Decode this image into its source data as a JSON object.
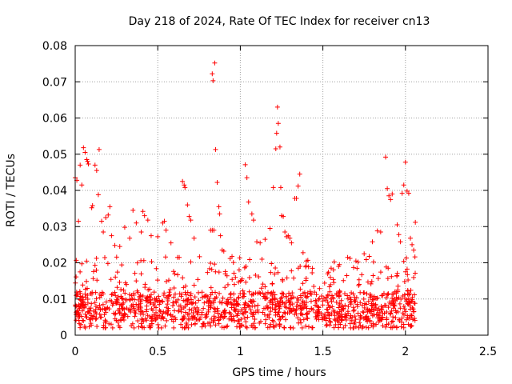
{
  "chart_data": {
    "type": "scatter",
    "title": "Day 218 of 2024, Rate Of TEC Index for receiver cn13",
    "xlabel": "GPS time / hours",
    "ylabel": "ROTI / TECUs",
    "xlim": [
      0,
      2.5
    ],
    "ylim": [
      0,
      0.08
    ],
    "x_ticks": [
      0,
      0.5,
      1,
      1.5,
      2,
      2.5
    ],
    "x_tick_labels": [
      "0",
      "0.5",
      "1",
      "1.5",
      "2",
      "2.5"
    ],
    "y_ticks": [
      0,
      0.01,
      0.02,
      0.03,
      0.04,
      0.05,
      0.06,
      0.07,
      0.08
    ],
    "y_tick_labels": [
      "0",
      "0.01",
      "0.02",
      "0.03",
      "0.04",
      "0.05",
      "0.06",
      "0.07",
      "0.08"
    ],
    "grid": true,
    "marker": "+",
    "color": "#ff0000",
    "series": [
      {
        "name": "cn13",
        "points": [
          [
            0.0,
            0.0435
          ],
          [
            0.01,
            0.0428
          ],
          [
            0.02,
            0.0315
          ],
          [
            0.03,
            0.047
          ],
          [
            0.04,
            0.0415
          ],
          [
            0.05,
            0.0518
          ],
          [
            0.06,
            0.0505
          ],
          [
            0.07,
            0.0485
          ],
          [
            0.075,
            0.048
          ],
          [
            0.08,
            0.0473
          ],
          [
            0.1,
            0.0352
          ],
          [
            0.105,
            0.0358
          ],
          [
            0.12,
            0.047
          ],
          [
            0.13,
            0.0455
          ],
          [
            0.14,
            0.0388
          ],
          [
            0.145,
            0.0513
          ],
          [
            0.16,
            0.0315
          ],
          [
            0.17,
            0.0285
          ],
          [
            0.185,
            0.0325
          ],
          [
            0.2,
            0.0332
          ],
          [
            0.21,
            0.0355
          ],
          [
            0.22,
            0.0275
          ],
          [
            0.24,
            0.0248
          ],
          [
            0.27,
            0.0245
          ],
          [
            0.3,
            0.0298
          ],
          [
            0.33,
            0.0268
          ],
          [
            0.35,
            0.0345
          ],
          [
            0.37,
            0.031
          ],
          [
            0.4,
            0.0285
          ],
          [
            0.41,
            0.0342
          ],
          [
            0.42,
            0.033
          ],
          [
            0.44,
            0.0318
          ],
          [
            0.46,
            0.0275
          ],
          [
            0.5,
            0.0272
          ],
          [
            0.53,
            0.031
          ],
          [
            0.54,
            0.0315
          ],
          [
            0.55,
            0.029
          ],
          [
            0.58,
            0.0255
          ],
          [
            0.62,
            0.0215
          ],
          [
            0.63,
            0.0215
          ],
          [
            0.65,
            0.0425
          ],
          [
            0.66,
            0.0415
          ],
          [
            0.665,
            0.0408
          ],
          [
            0.68,
            0.036
          ],
          [
            0.69,
            0.0328
          ],
          [
            0.7,
            0.0318
          ],
          [
            0.72,
            0.0268
          ],
          [
            0.83,
            0.0722
          ],
          [
            0.835,
            0.0703
          ],
          [
            0.845,
            0.0752
          ],
          [
            0.85,
            0.0513
          ],
          [
            0.86,
            0.0422
          ],
          [
            0.87,
            0.0355
          ],
          [
            0.875,
            0.0335
          ],
          [
            0.88,
            0.0275
          ],
          [
            0.82,
            0.029
          ],
          [
            0.83,
            0.029
          ],
          [
            0.84,
            0.029
          ],
          [
            0.89,
            0.0235
          ],
          [
            0.9,
            0.0232
          ],
          [
            1.03,
            0.0471
          ],
          [
            1.04,
            0.0435
          ],
          [
            1.05,
            0.0368
          ],
          [
            1.07,
            0.0335
          ],
          [
            1.08,
            0.0318
          ],
          [
            1.1,
            0.0258
          ],
          [
            1.12,
            0.0255
          ],
          [
            1.15,
            0.0265
          ],
          [
            1.18,
            0.0295
          ],
          [
            1.2,
            0.0408
          ],
          [
            1.215,
            0.0515
          ],
          [
            1.22,
            0.0558
          ],
          [
            1.23,
            0.0585
          ],
          [
            1.225,
            0.063
          ],
          [
            1.24,
            0.052
          ],
          [
            1.245,
            0.0408
          ],
          [
            1.25,
            0.033
          ],
          [
            1.26,
            0.0328
          ],
          [
            1.27,
            0.0285
          ],
          [
            1.28,
            0.0272
          ],
          [
            1.29,
            0.0275
          ],
          [
            1.3,
            0.0268
          ],
          [
            1.31,
            0.0255
          ],
          [
            1.33,
            0.0378
          ],
          [
            1.34,
            0.0378
          ],
          [
            1.35,
            0.0412
          ],
          [
            1.36,
            0.0445
          ],
          [
            1.38,
            0.0228
          ],
          [
            1.4,
            0.0205
          ],
          [
            1.55,
            0.0185
          ],
          [
            1.6,
            0.0195
          ],
          [
            1.65,
            0.0215
          ],
          [
            1.7,
            0.0205
          ],
          [
            1.75,
            0.0225
          ],
          [
            1.8,
            0.0258
          ],
          [
            1.83,
            0.0288
          ],
          [
            1.85,
            0.0285
          ],
          [
            1.88,
            0.0492
          ],
          [
            1.89,
            0.0405
          ],
          [
            1.9,
            0.0385
          ],
          [
            1.91,
            0.0375
          ],
          [
            1.92,
            0.039
          ],
          [
            1.95,
            0.0305
          ],
          [
            1.96,
            0.0278
          ],
          [
            1.97,
            0.0258
          ],
          [
            1.98,
            0.0392
          ],
          [
            1.99,
            0.0415
          ],
          [
            2.0,
            0.0478
          ],
          [
            2.01,
            0.0398
          ],
          [
            2.02,
            0.0392
          ],
          [
            2.03,
            0.0268
          ],
          [
            2.04,
            0.025
          ],
          [
            2.05,
            0.0235
          ],
          [
            2.06,
            0.0312
          ]
        ]
      }
    ],
    "band": {
      "x_start": 0.0,
      "x_end": 2.06,
      "y_min": 0.002,
      "y_max": 0.022,
      "count": 1300
    }
  }
}
